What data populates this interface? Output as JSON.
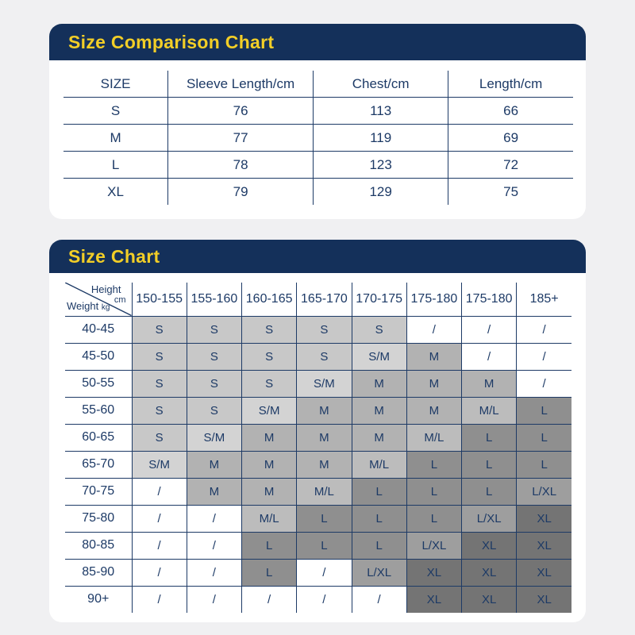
{
  "theme": {
    "page_background": "#F0F0F2",
    "card_background": "#FFFFFF",
    "navy": "#14305A",
    "title_yellow": "#F2CE27",
    "text_and_border": "#1D3A66"
  },
  "chart_data": [
    {
      "type": "table",
      "title": "Size Comparison Chart",
      "columns": [
        "SIZE",
        "Sleeve Length/cm",
        "Chest/cm",
        "Length/cm"
      ],
      "rows": [
        [
          "S",
          "76",
          "113",
          "66"
        ],
        [
          "M",
          "77",
          "119",
          "69"
        ],
        [
          "L",
          "78",
          "123",
          "72"
        ],
        [
          "XL",
          "79",
          "129",
          "75"
        ]
      ]
    },
    {
      "type": "table",
      "title": "Size Chart",
      "corner": {
        "height_label": "Height",
        "height_unit": "cm",
        "weight_label": "Weight",
        "weight_unit": "kg"
      },
      "height_columns": [
        "150-155",
        "155-160",
        "160-165",
        "165-170",
        "170-175",
        "175-180",
        "175-180",
        "185+"
      ],
      "rows": [
        {
          "weight": "40-45",
          "cells": [
            "S",
            "S",
            "S",
            "S",
            "S",
            "/",
            "/",
            "/"
          ]
        },
        {
          "weight": "45-50",
          "cells": [
            "S",
            "S",
            "S",
            "S",
            "S/M",
            "M",
            "/",
            "/"
          ]
        },
        {
          "weight": "50-55",
          "cells": [
            "S",
            "S",
            "S",
            "S/M",
            "M",
            "M",
            "M",
            "/"
          ]
        },
        {
          "weight": "55-60",
          "cells": [
            "S",
            "S",
            "S/M",
            "M",
            "M",
            "M",
            "M/L",
            "L"
          ]
        },
        {
          "weight": "60-65",
          "cells": [
            "S",
            "S/M",
            "M",
            "M",
            "M",
            "M/L",
            "L",
            "L"
          ]
        },
        {
          "weight": "65-70",
          "cells": [
            "S/M",
            "M",
            "M",
            "M",
            "M/L",
            "L",
            "L",
            "L"
          ]
        },
        {
          "weight": "70-75",
          "cells": [
            "/",
            "M",
            "M",
            "M/L",
            "L",
            "L",
            "L",
            "L/XL"
          ]
        },
        {
          "weight": "75-80",
          "cells": [
            "/",
            "/",
            "M/L",
            "L",
            "L",
            "L",
            "L/XL",
            "XL"
          ]
        },
        {
          "weight": "80-85",
          "cells": [
            "/",
            "/",
            "L",
            "L",
            "L",
            "L/XL",
            "XL",
            "XL"
          ]
        },
        {
          "weight": "85-90",
          "cells": [
            "/",
            "/",
            "L",
            "/",
            "L/XL",
            "XL",
            "XL",
            "XL"
          ]
        },
        {
          "weight": "90+",
          "cells": [
            "/",
            "/",
            "/",
            "/",
            "/",
            "XL",
            "XL",
            "XL"
          ]
        }
      ],
      "cell_colors": {
        "S": "#C8C8C8",
        "S/M": "#D3D3D3",
        "M": "#B2B2B2",
        "M/L": "#BCBCBC",
        "L": "#8F8F8F",
        "L/XL": "#9E9E9E",
        "XL": "#747474",
        "/": "#FFFFFF"
      }
    }
  ]
}
